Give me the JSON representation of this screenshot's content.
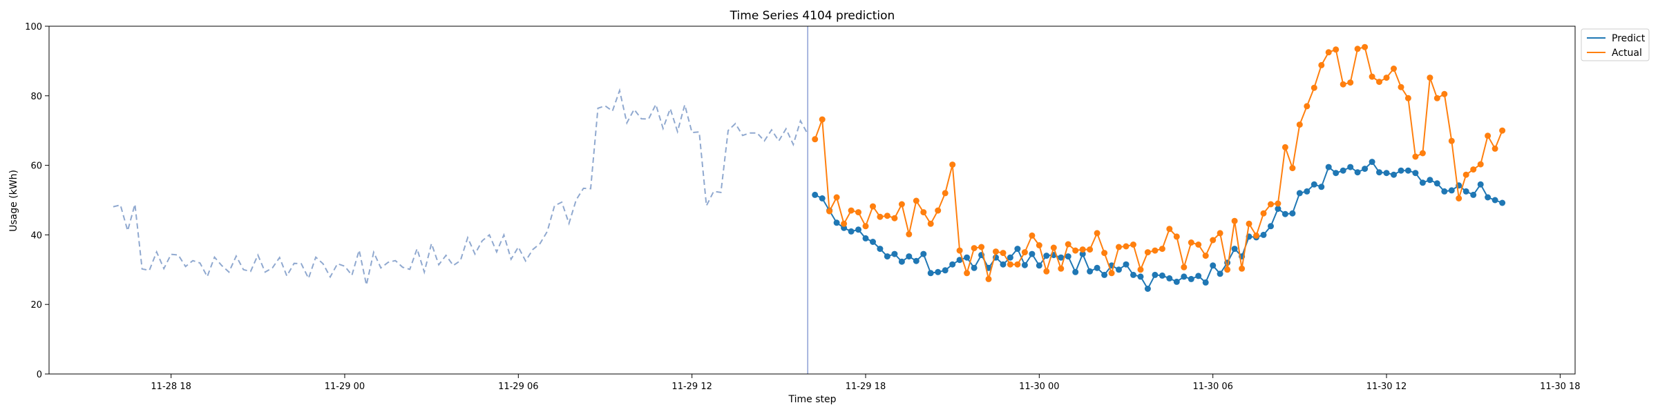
{
  "chart_data": {
    "type": "line",
    "title": "Time Series 4104 prediction",
    "xlabel": "Time step",
    "ylabel": "Usage (kWh)",
    "ylim": [
      0,
      100
    ],
    "xlim": [
      "11-28 13:47",
      "11-30 18:31"
    ],
    "y_ticks": [
      0,
      20,
      40,
      60,
      80,
      100
    ],
    "x_ticks": [
      {
        "t": "11-28 18:00",
        "label": "11-28 18"
      },
      {
        "t": "11-29 00:00",
        "label": "11-29 00"
      },
      {
        "t": "11-29 06:00",
        "label": "11-29 06"
      },
      {
        "t": "11-29 12:00",
        "label": "11-29 12"
      },
      {
        "t": "11-29 18:00",
        "label": "11-29 18"
      },
      {
        "t": "11-30 00:00",
        "label": "11-30 00"
      },
      {
        "t": "11-30 06:00",
        "label": "11-30 06"
      },
      {
        "t": "11-30 12:00",
        "label": "11-30 12"
      },
      {
        "t": "11-30 18:00",
        "label": "11-30 18"
      }
    ],
    "x_start": "11-28 16:00",
    "x_step_minutes": 15,
    "forecast_start": "11-29 16:00",
    "forecast_line_color": "#8c9fd4",
    "history": {
      "color": "#8fa8cf",
      "style": "dashed",
      "values": [
        48.1,
        48.6,
        41.2,
        48.8,
        30.2,
        29.8,
        35.1,
        30.3,
        34.4,
        34.2,
        30.9,
        32.6,
        31.9,
        28.0,
        33.6,
        31.2,
        29.3,
        33.9,
        30.0,
        29.5,
        34.2,
        29.3,
        30.5,
        33.5,
        28.2,
        31.8,
        31.7,
        27.5,
        33.6,
        31.7,
        27.9,
        31.7,
        31.0,
        28.4,
        35.6,
        25.6,
        35.0,
        30.5,
        32.1,
        32.6,
        30.7,
        30.1,
        36.0,
        29.3,
        37.5,
        31.4,
        34.1,
        31.2,
        32.6,
        39.2,
        34.5,
        38.3,
        40.0,
        35.1,
        40.0,
        33.0,
        36.5,
        32.5,
        35.8,
        37.5,
        41.0,
        48.4,
        49.4,
        43.3,
        50.1,
        53.4,
        53.3,
        76.4,
        77.1,
        75.6,
        81.5,
        72.2,
        76.1,
        73.4,
        73.3,
        77.5,
        70.6,
        76.3,
        69.7,
        77.4,
        69.4,
        69.6,
        48.4,
        52.5,
        52.2,
        70.0,
        72.0,
        68.6,
        69.3,
        69.3,
        67.0,
        70.2,
        67.0,
        70.5,
        66.0,
        72.8,
        69.0
      ]
    },
    "series": [
      {
        "name": "Predict",
        "color": "#1f77b4",
        "values": [
          51.5,
          50.5,
          47.0,
          43.5,
          42.0,
          41.0,
          41.5,
          39.0,
          38.0,
          36.0,
          33.8,
          34.5,
          32.3,
          33.8,
          32.5,
          34.5,
          29.0,
          29.3,
          29.8,
          31.5,
          32.8,
          33.5,
          30.5,
          34.2,
          30.5,
          33.5,
          31.5,
          33.5,
          36.0,
          31.3,
          34.5,
          31.2,
          34.0,
          34.2,
          33.5,
          33.8,
          29.3,
          34.5,
          29.5,
          30.5,
          28.5,
          31.2,
          30.0,
          31.5,
          28.5,
          28.0,
          24.5,
          28.5,
          28.3,
          27.5,
          26.5,
          28.0,
          27.3,
          28.2,
          26.3,
          31.2,
          28.8,
          32.0,
          36.0,
          33.8,
          39.5,
          39.3,
          40.0,
          42.5,
          47.5,
          46.0,
          46.2,
          52.0,
          52.5,
          54.5,
          53.8,
          59.5,
          57.8,
          58.5,
          59.5,
          58.0,
          59.0,
          61.0,
          58.0,
          57.8,
          57.3,
          58.5,
          58.5,
          57.8,
          55.0,
          55.8,
          54.8,
          52.5,
          52.8,
          54.2,
          52.5,
          51.5,
          54.5,
          50.8,
          50.0,
          49.2
        ]
      },
      {
        "name": "Actual",
        "color": "#ff7f0e",
        "values": [
          67.5,
          73.2,
          46.8,
          50.8,
          43.2,
          47.0,
          46.5,
          42.5,
          48.2,
          45.2,
          45.5,
          44.8,
          48.8,
          40.2,
          49.8,
          46.5,
          43.2,
          47.0,
          52.0,
          60.2,
          35.5,
          29.0,
          36.2,
          36.5,
          27.3,
          35.2,
          34.8,
          31.5,
          31.5,
          35.0,
          39.8,
          37.0,
          29.5,
          36.3,
          30.3,
          37.3,
          35.5,
          35.8,
          35.8,
          40.5,
          34.8,
          29.0,
          36.5,
          36.7,
          37.2,
          30.0,
          35.0,
          35.5,
          36.0,
          41.7,
          39.5,
          30.7,
          37.8,
          37.2,
          34.0,
          38.5,
          40.5,
          30.0,
          44.0,
          30.3,
          43.2,
          39.8,
          46.2,
          48.8,
          49.0,
          65.2,
          59.2,
          71.7,
          77.0,
          82.3,
          88.8,
          92.5,
          93.3,
          83.3,
          83.8,
          93.5,
          94.0,
          85.5,
          84.0,
          85.2,
          87.8,
          82.5,
          79.3,
          62.5,
          63.5,
          85.2,
          79.3,
          80.5,
          67.0,
          50.5,
          57.3,
          58.8,
          60.3,
          68.5,
          64.8,
          70.0
        ]
      }
    ],
    "legend": {
      "placement": "top-right, outside plot",
      "entries": [
        "Predict",
        "Actual"
      ]
    },
    "grid": false
  }
}
